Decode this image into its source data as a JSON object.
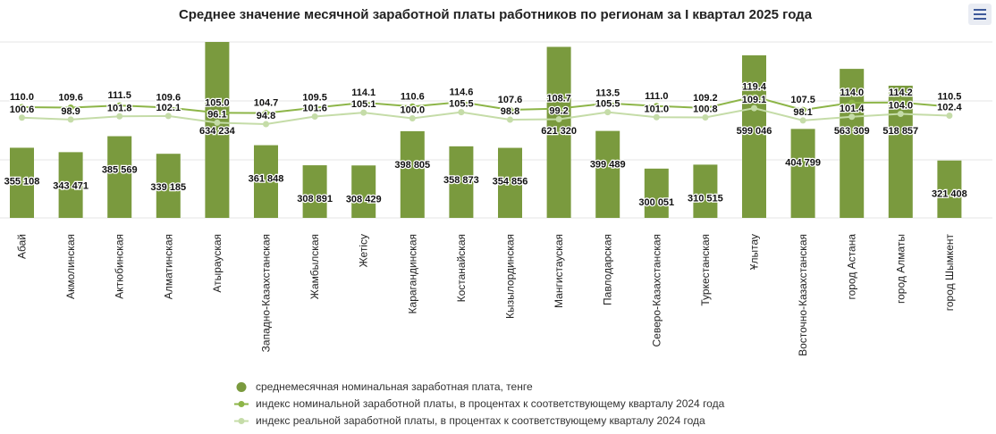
{
  "title": "Среднее значение месячной заработной платы работников по регионам за I квартал 2025 года",
  "menu_icon": "hamburger-menu-icon",
  "colors": {
    "bar": "#7a9a3e",
    "nominal_line": "#8db548",
    "real_line": "#c5dca8",
    "grid": "#e6e6e6",
    "text": "#111111"
  },
  "chart_data": {
    "type": "bar",
    "categories": [
      "Абай",
      "Акмолинская",
      "Актюбинская",
      "Алматинская",
      "Атырауская",
      "Западно-Казахстанская",
      "Жамбылская",
      "Жетісу",
      "Карагандинская",
      "Костанайская",
      "Кызылординская",
      "Мангистауская",
      "Павлодарская",
      "Северо-Казахстанская",
      "Туркестанская",
      "Ұлытау",
      "Восточно-Казахстанская",
      "город Астана",
      "город Алматы",
      "город Шымкент"
    ],
    "series": [
      {
        "name": "среднемесячная номинальная заработная плата, тенге",
        "kind": "bar",
        "values": [
          355108,
          343471,
          385569,
          339185,
          634234,
          361848,
          308891,
          308429,
          398805,
          358873,
          354856,
          621320,
          399489,
          300051,
          310515,
          599046,
          404799,
          563309,
          518857,
          321408
        ],
        "labels": [
          "355 108",
          "343 471",
          "385 569",
          "339 185",
          "634 234",
          "361 848",
          "308 891",
          "308 429",
          "398 805",
          "358 873",
          "354 856",
          "621 320",
          "399 489",
          "300 051",
          "310 515",
          "599 046",
          "404 799",
          "563 309",
          "518 857",
          "321 408"
        ]
      },
      {
        "name": "индекс номинальной заработной платы, в процентах к соответствующему кварталу 2024 года",
        "kind": "line",
        "values": [
          110.0,
          109.6,
          111.5,
          109.6,
          105.0,
          104.7,
          109.5,
          114.1,
          110.6,
          114.6,
          107.6,
          108.7,
          113.5,
          111.0,
          109.2,
          119.4,
          107.5,
          114.0,
          114.2,
          110.5
        ],
        "labels": [
          "110.0",
          "109.6",
          "111.5",
          "109.6",
          "105.0",
          "104.7",
          "109.5",
          "114.1",
          "110.6",
          "114.6",
          "107.6",
          "108.7",
          "113.5",
          "111.0",
          "109.2",
          "119.4",
          "107.5",
          "114.0",
          "114.2",
          "110.5"
        ]
      },
      {
        "name": "индекс реальной заработной платы, в процентах к соответствующему кварталу 2024 года",
        "kind": "line",
        "values": [
          100.6,
          98.9,
          101.8,
          102.1,
          96.1,
          94.8,
          101.6,
          105.1,
          100.0,
          105.5,
          98.8,
          99.2,
          105.5,
          101.0,
          100.8,
          109.1,
          98.1,
          101.4,
          104.0,
          102.4
        ],
        "labels": [
          "100.6",
          "98.9",
          "101.8",
          "102.1",
          "96.1",
          "94.8",
          "101.6",
          "105.1",
          "100.0",
          "105.5",
          "98.8",
          "99.2",
          "105.5",
          "101.0",
          "100.8",
          "109.1",
          "98.1",
          "101.4",
          "104.0",
          "102.4"
        ]
      }
    ],
    "legend_position": "bottom",
    "grid": true
  }
}
